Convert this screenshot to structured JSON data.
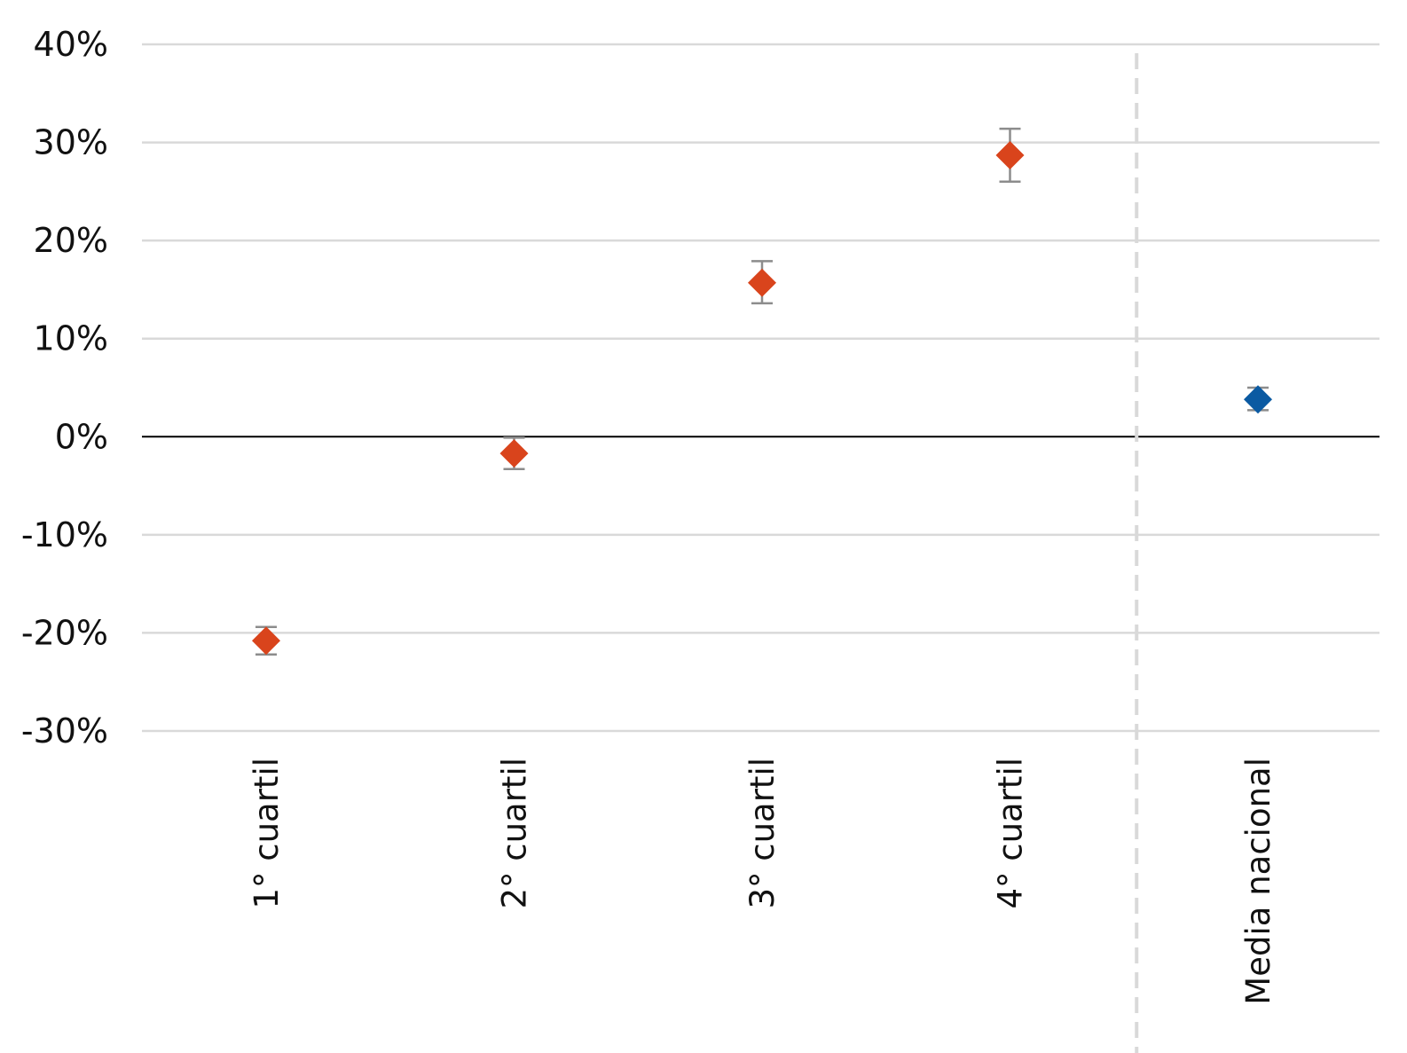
{
  "chart_data": {
    "type": "scatter",
    "title": "",
    "xlabel": "",
    "ylabel": "",
    "categories": [
      "1° cuartil",
      "2° cuartil",
      "3° cuartil",
      "4° cuartil",
      "Media nacional"
    ],
    "ylim": [
      -0.3,
      0.4
    ],
    "yticks": [
      0.4,
      0.3,
      0.2,
      0.1,
      0.0,
      -0.1,
      -0.2,
      -0.3
    ],
    "ytick_labels": [
      "40%",
      "30%",
      "20%",
      "10%",
      "0%",
      "-10%",
      "-20%",
      "-30%"
    ],
    "grid": true,
    "legend": "none",
    "separator_after_category_index": 3,
    "series": [
      {
        "marker": "diamond",
        "points": [
          {
            "category": "1° cuartil",
            "value": -0.208,
            "err_low": -0.222,
            "err_high": -0.194,
            "color": "#d9441c"
          },
          {
            "category": "2° cuartil",
            "value": -0.017,
            "err_low": -0.033,
            "err_high": -0.001,
            "color": "#d9441c"
          },
          {
            "category": "3° cuartil",
            "value": 0.157,
            "err_low": 0.136,
            "err_high": 0.179,
            "color": "#d9441c"
          },
          {
            "category": "4° cuartil",
            "value": 0.287,
            "err_low": 0.26,
            "err_high": 0.314,
            "color": "#d9441c"
          },
          {
            "category": "Media nacional",
            "value": 0.038,
            "err_low": 0.027,
            "err_high": 0.05,
            "color": "#0b5aa2"
          }
        ]
      }
    ],
    "colors": {
      "grid": "#d9d9d9",
      "zero_line": "#000000",
      "error_bar": "#8c8c8c",
      "separator": "#d9d9d9"
    }
  }
}
